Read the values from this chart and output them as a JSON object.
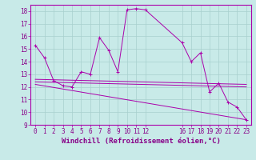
{
  "xlabel": "Windchill (Refroidissement éolien,°C)",
  "bg_color": "#c8eae8",
  "grid_color": "#a8d0ce",
  "line_color": "#aa00aa",
  "spine_color": "#aa00aa",
  "text_color": "#880088",
  "ylim": [
    9,
    18.5
  ],
  "xlim": [
    -0.5,
    23.5
  ],
  "yticks": [
    9,
    10,
    11,
    12,
    13,
    14,
    15,
    16,
    17,
    18
  ],
  "xticks": [
    0,
    1,
    2,
    3,
    4,
    5,
    6,
    7,
    8,
    9,
    10,
    11,
    12,
    16,
    17,
    18,
    19,
    20,
    21,
    22,
    23
  ],
  "line1_x": [
    0,
    1,
    2,
    3,
    4,
    5,
    6,
    7,
    8,
    9,
    10,
    11,
    12,
    16,
    17,
    18,
    19,
    20,
    21,
    22,
    23
  ],
  "line1_y": [
    15.3,
    14.3,
    12.5,
    12.1,
    12.0,
    13.2,
    13.0,
    15.9,
    14.9,
    13.2,
    18.1,
    18.2,
    18.1,
    15.5,
    14.0,
    14.7,
    11.6,
    12.3,
    10.8,
    10.4,
    9.4
  ],
  "line2_x": [
    0,
    23
  ],
  "line2_y": [
    12.6,
    12.2
  ],
  "line3_x": [
    0,
    23
  ],
  "line3_y": [
    12.4,
    12.0
  ],
  "line4_x": [
    0,
    23
  ],
  "line4_y": [
    12.2,
    9.4
  ],
  "tick_fontsize": 5.5,
  "label_fontsize": 6.5
}
